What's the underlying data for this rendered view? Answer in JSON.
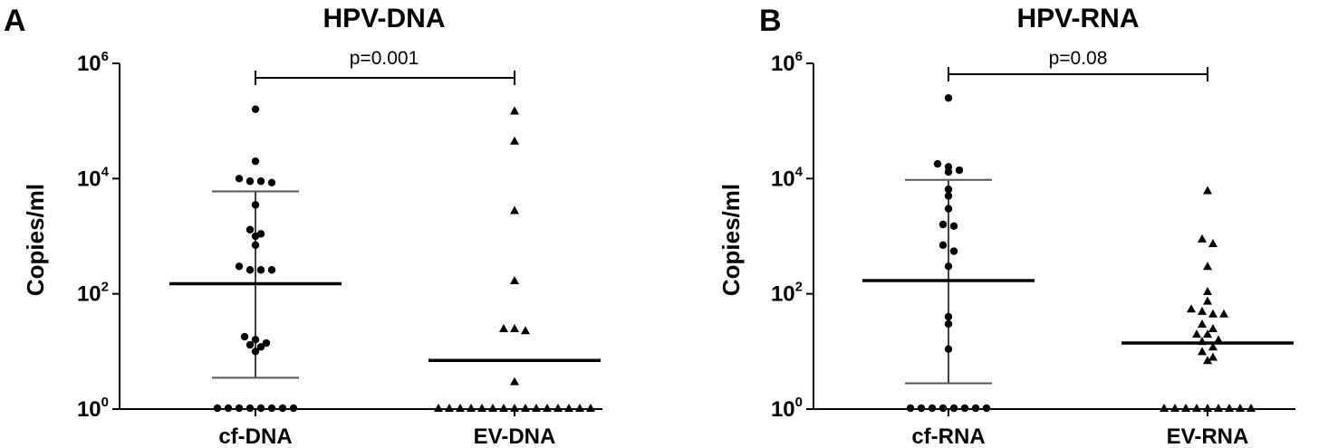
{
  "chart_data": [
    {
      "panel": "A",
      "type": "scatter",
      "title": "HPV-DNA",
      "ylabel": "Copies/ml",
      "yscale": "log",
      "ylim": [
        1,
        1000000
      ],
      "yticks": [
        {
          "base": "10",
          "exp": "0",
          "value": 1
        },
        {
          "base": "10",
          "exp": "2",
          "value": 100
        },
        {
          "base": "10",
          "exp": "4",
          "value": 10000
        },
        {
          "base": "10",
          "exp": "6",
          "value": 1000000
        }
      ],
      "categories": [
        "cf-DNA",
        "EV-DNA"
      ],
      "comparison": {
        "label": "p=0.001",
        "between": [
          "cf-DNA",
          "EV-DNA"
        ]
      },
      "groups": [
        {
          "category": "cf-DNA",
          "marker": "circle",
          "center": 150,
          "error": [
            3.5,
            6000
          ],
          "points": [
            160000,
            20000,
            10000,
            9000,
            9000,
            8500,
            3500,
            1300,
            1100,
            1000,
            700,
            300,
            260,
            260,
            260,
            18,
            16,
            14,
            13,
            12,
            10,
            1,
            1,
            1,
            1,
            1,
            1,
            1,
            1
          ]
        },
        {
          "category": "EV-DNA",
          "marker": "triangle",
          "center": 7,
          "points": [
            150000,
            45000,
            2800,
            170,
            25,
            25,
            23,
            3,
            1,
            1,
            1,
            1,
            1,
            1,
            1,
            1,
            1,
            1,
            1,
            1,
            1,
            1,
            1
          ]
        }
      ]
    },
    {
      "panel": "B",
      "type": "scatter",
      "title": "HPV-RNA",
      "ylabel": "Copies/ml",
      "yscale": "log",
      "ylim": [
        1,
        1000000
      ],
      "yticks": [
        {
          "base": "10",
          "exp": "0",
          "value": 1
        },
        {
          "base": "10",
          "exp": "2",
          "value": 100
        },
        {
          "base": "10",
          "exp": "4",
          "value": 10000
        },
        {
          "base": "10",
          "exp": "6",
          "value": 1000000
        }
      ],
      "categories": [
        "cf-RNA",
        "EV-RNA"
      ],
      "comparison": {
        "label": "p=0.08",
        "between": [
          "cf-RNA",
          "EV-RNA"
        ]
      },
      "groups": [
        {
          "category": "cf-RNA",
          "marker": "circle",
          "center": 170,
          "error": [
            2.8,
            9500
          ],
          "points": [
            250000,
            18000,
            16000,
            14000,
            13000,
            6500,
            5000,
            3000,
            1600,
            1500,
            700,
            550,
            300,
            40,
            30,
            11,
            1,
            1,
            1,
            1,
            1,
            1,
            1,
            1
          ]
        },
        {
          "category": "EV-RNA",
          "marker": "triangle",
          "center": 14,
          "points": [
            6200,
            900,
            750,
            300,
            110,
            75,
            55,
            50,
            45,
            45,
            30,
            25,
            20,
            20,
            16,
            15,
            12,
            10,
            8,
            7,
            1,
            1,
            1,
            1,
            1,
            1,
            1,
            1,
            1
          ]
        }
      ]
    }
  ]
}
